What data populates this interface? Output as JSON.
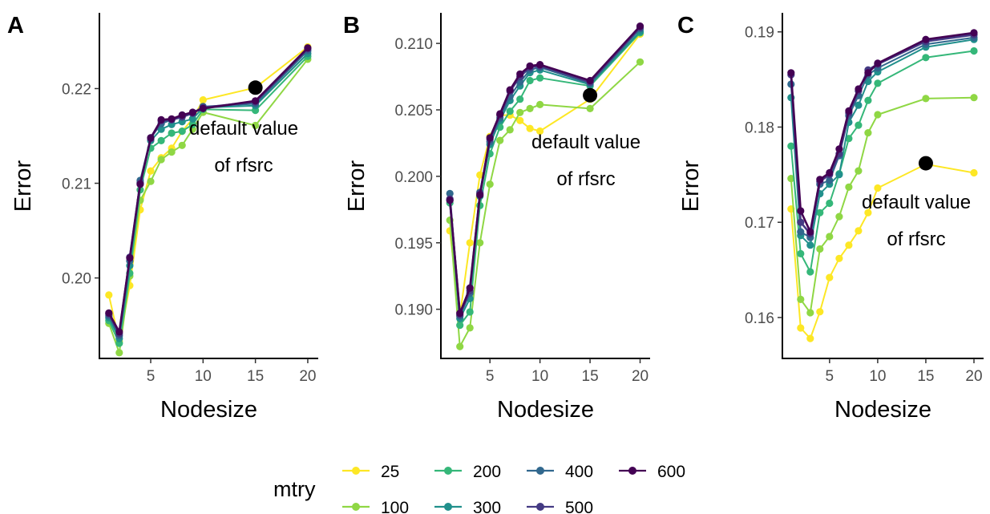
{
  "chart_data": [
    {
      "type": "line",
      "panel_tag": "A",
      "xlabel": "Nodesize",
      "ylabel": "Error",
      "xlim": [
        0.1,
        21.0
      ],
      "ylim": [
        0.1915,
        0.228
      ],
      "x_ticks": [
        5,
        10,
        15,
        20
      ],
      "y_ticks": [
        0.2,
        0.21,
        0.22
      ],
      "y_tick_labels": [
        "0.20",
        "0.21",
        "0.22"
      ],
      "grid": false,
      "x": [
        1,
        2,
        3,
        4,
        5,
        6,
        7,
        8,
        9,
        10,
        15,
        20
      ],
      "series": [
        {
          "name": "25",
          "values": [
            0.1982,
            0.1933,
            0.1992,
            0.2072,
            0.2113,
            0.2127,
            0.2137,
            0.2155,
            0.2168,
            0.2188,
            0.2201,
            0.2244
          ]
        },
        {
          "name": "100",
          "values": [
            0.1952,
            0.1921,
            0.2002,
            0.2082,
            0.2102,
            0.2125,
            0.2133,
            0.214,
            0.2157,
            0.2175,
            0.2161,
            0.2231
          ]
        },
        {
          "name": "200",
          "values": [
            0.1955,
            0.1931,
            0.2005,
            0.2093,
            0.2137,
            0.2145,
            0.2153,
            0.2155,
            0.2162,
            0.2178,
            0.2177,
            0.2234
          ]
        },
        {
          "name": "300",
          "values": [
            0.1958,
            0.1936,
            0.2013,
            0.2101,
            0.2145,
            0.2157,
            0.2162,
            0.2165,
            0.2168,
            0.218,
            0.2182,
            0.2237
          ]
        },
        {
          "name": "400",
          "values": [
            0.196,
            0.1939,
            0.2018,
            0.2103,
            0.2148,
            0.2163,
            0.2167,
            0.2172,
            0.2174,
            0.2181,
            0.2184,
            0.224
          ]
        },
        {
          "name": "500",
          "values": [
            0.1962,
            0.1941,
            0.2022,
            0.21,
            0.2147,
            0.2166,
            0.2167,
            0.217,
            0.2174,
            0.218,
            0.2186,
            0.2242
          ]
        },
        {
          "name": "600",
          "values": [
            0.1963,
            0.1943,
            0.2021,
            0.2099,
            0.2148,
            0.2167,
            0.2168,
            0.2172,
            0.2175,
            0.2179,
            0.2187,
            0.2243
          ]
        }
      ],
      "highlight": {
        "x": 15,
        "y": 0.2201
      },
      "annotation": [
        "default value",
        "of rfsrc"
      ]
    },
    {
      "type": "line",
      "panel_tag": "B",
      "xlabel": "Nodesize",
      "ylabel": "Error",
      "xlim": [
        0.1,
        21.0
      ],
      "ylim": [
        0.1863,
        0.2123
      ],
      "x_ticks": [
        5,
        10,
        15,
        20
      ],
      "y_ticks": [
        0.19,
        0.195,
        0.2,
        0.205,
        0.21
      ],
      "y_tick_labels": [
        "0.190",
        "0.195",
        "0.200",
        "0.205",
        "0.210"
      ],
      "grid": false,
      "x": [
        1,
        2,
        3,
        4,
        5,
        6,
        7,
        8,
        9,
        10,
        15,
        20
      ],
      "series": [
        {
          "name": "25",
          "values": [
            0.1959,
            0.1895,
            0.195,
            0.2001,
            0.203,
            0.2046,
            0.2046,
            0.2042,
            0.2036,
            0.2034,
            0.2058,
            0.2107
          ]
        },
        {
          "name": "100",
          "values": [
            0.1967,
            0.1872,
            0.1886,
            0.195,
            0.1994,
            0.2027,
            0.2035,
            0.2048,
            0.2051,
            0.2054,
            0.2051,
            0.2086
          ]
        },
        {
          "name": "200",
          "values": [
            0.198,
            0.1888,
            0.1898,
            0.1978,
            0.2017,
            0.2037,
            0.2049,
            0.2058,
            0.2072,
            0.2074,
            0.2068,
            0.2108
          ]
        },
        {
          "name": "300",
          "values": [
            0.1982,
            0.1893,
            0.1908,
            0.1985,
            0.2024,
            0.2042,
            0.2057,
            0.2068,
            0.2078,
            0.208,
            0.2069,
            0.2109
          ]
        },
        {
          "name": "400",
          "values": [
            0.1987,
            0.1895,
            0.1912,
            0.1988,
            0.2026,
            0.2044,
            0.206,
            0.2071,
            0.208,
            0.2082,
            0.207,
            0.2111
          ]
        },
        {
          "name": "500",
          "values": [
            0.1983,
            0.1896,
            0.1914,
            0.1987,
            0.2028,
            0.2046,
            0.2064,
            0.2075,
            0.2082,
            0.2083,
            0.2071,
            0.2112
          ]
        },
        {
          "name": "600",
          "values": [
            0.1982,
            0.1897,
            0.1916,
            0.1986,
            0.2029,
            0.2047,
            0.2065,
            0.2077,
            0.2083,
            0.2084,
            0.2072,
            0.2113
          ]
        }
      ],
      "highlight": {
        "x": 15,
        "y": 0.2061
      },
      "annotation": [
        "default value",
        "of rfsrc"
      ]
    },
    {
      "type": "line",
      "panel_tag": "C",
      "xlabel": "Nodesize",
      "ylabel": "Error",
      "xlim": [
        0.1,
        21.0
      ],
      "ylim": [
        0.1557,
        0.192
      ],
      "x_ticks": [
        5,
        10,
        15,
        20
      ],
      "y_ticks": [
        0.16,
        0.17,
        0.18,
        0.19
      ],
      "y_tick_labels": [
        "0.16",
        "0.17",
        "0.18",
        "0.19"
      ],
      "grid": false,
      "x": [
        1,
        2,
        3,
        4,
        5,
        6,
        7,
        8,
        9,
        10,
        15,
        20
      ],
      "series": [
        {
          "name": "25",
          "values": [
            0.1714,
            0.1589,
            0.1578,
            0.1606,
            0.1642,
            0.1662,
            0.1676,
            0.1691,
            0.171,
            0.1736,
            0.1761,
            0.1752
          ]
        },
        {
          "name": "100",
          "values": [
            0.1746,
            0.1619,
            0.1605,
            0.1672,
            0.1685,
            0.1706,
            0.1737,
            0.1754,
            0.1794,
            0.1813,
            0.183,
            0.1831
          ]
        },
        {
          "name": "200",
          "values": [
            0.178,
            0.1667,
            0.1648,
            0.171,
            0.172,
            0.1751,
            0.1788,
            0.1802,
            0.1828,
            0.1846,
            0.1873,
            0.188
          ]
        },
        {
          "name": "300",
          "values": [
            0.1831,
            0.1686,
            0.1676,
            0.173,
            0.174,
            0.175,
            0.1805,
            0.1823,
            0.1848,
            0.1858,
            0.1884,
            0.1892
          ]
        },
        {
          "name": "400",
          "values": [
            0.1845,
            0.169,
            0.1684,
            0.174,
            0.1744,
            0.177,
            0.1812,
            0.1833,
            0.1855,
            0.1862,
            0.1887,
            0.1894
          ]
        },
        {
          "name": "500",
          "values": [
            0.1855,
            0.17,
            0.1688,
            0.1743,
            0.175,
            0.1772,
            0.1815,
            0.1838,
            0.186,
            0.1866,
            0.189,
            0.1897
          ]
        },
        {
          "name": "600",
          "values": [
            0.1857,
            0.1712,
            0.169,
            0.1745,
            0.1752,
            0.1777,
            0.1817,
            0.184,
            0.1857,
            0.1867,
            0.1892,
            0.1899
          ]
        }
      ],
      "highlight": {
        "x": 15,
        "y": 0.1762
      },
      "annotation": [
        "default value",
        "of rfsrc"
      ]
    }
  ],
  "legend": {
    "title": "mtry",
    "entries": [
      {
        "label": "25",
        "color": "#FDE725"
      },
      {
        "label": "100",
        "color": "#8FD744"
      },
      {
        "label": "200",
        "color": "#35B779"
      },
      {
        "label": "300",
        "color": "#21908C"
      },
      {
        "label": "400",
        "color": "#31688E"
      },
      {
        "label": "500",
        "color": "#443A83"
      },
      {
        "label": "600",
        "color": "#440154"
      }
    ]
  },
  "colors": {
    "axis": "#000000",
    "tick_label": "#4d4d4d",
    "highlight": "#000000"
  }
}
